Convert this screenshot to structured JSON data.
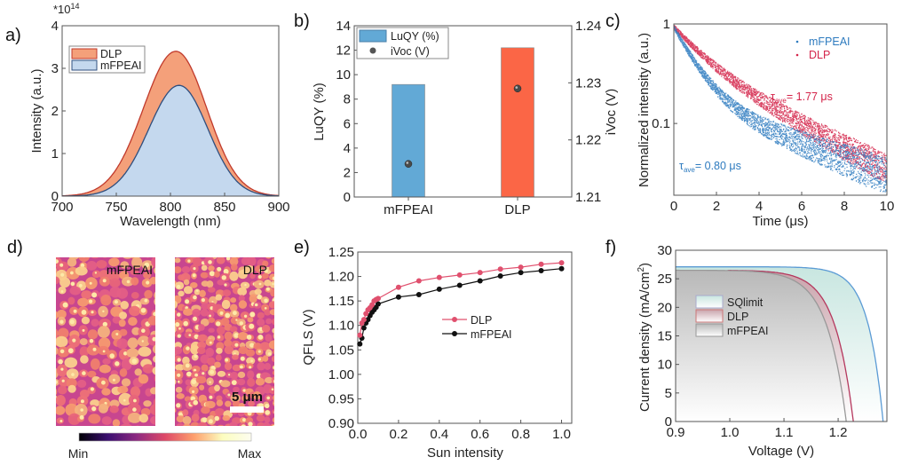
{
  "panels": {
    "a": {
      "label": "a)"
    },
    "b": {
      "label": "b)"
    },
    "c": {
      "label": "c)"
    },
    "d": {
      "label": "d)",
      "images": [
        "mFPEAI",
        "DLP"
      ],
      "scale_bar": "5 μm",
      "colorbar": {
        "min_label": "Min",
        "max_label": "Max",
        "colors": [
          "#000004",
          "#3b0f70",
          "#8c2981",
          "#de4968",
          "#fe9f6d",
          "#fcfdbf",
          "#fdfdf0"
        ]
      }
    },
    "e": {
      "label": "e)"
    },
    "f": {
      "label": "f)"
    }
  },
  "chart_data": [
    {
      "id": "a",
      "type": "area",
      "title": "",
      "xlabel": "Wavelength (nm)",
      "ylabel": "Intensity (a.u.)",
      "y_multiplier": "*10",
      "y_multiplier_exp": "14",
      "xlim": [
        700,
        900
      ],
      "ylim": [
        0,
        4
      ],
      "xticks": [
        700,
        750,
        800,
        850,
        900
      ],
      "yticks": [
        0,
        1,
        2,
        3,
        4
      ],
      "legend_position": "top-left",
      "series": [
        {
          "name": "DLP",
          "peak_x": 805,
          "peak_y": 3.4,
          "sigma": 30,
          "color": "#f4a07a",
          "line": "#c0392b"
        },
        {
          "name": "mFPEAI",
          "peak_x": 808,
          "peak_y": 2.6,
          "sigma": 28,
          "color": "#c4d8ee",
          "line": "#2f4f7f"
        }
      ]
    },
    {
      "id": "b",
      "type": "bar",
      "xlabel": "",
      "ylabel": "LuQY (%)",
      "y2label": "iVoc (V)",
      "categories": [
        "mFPEAI",
        "DLP"
      ],
      "ylim": [
        0,
        14
      ],
      "y2lim": [
        1.21,
        1.24
      ],
      "yticks": [
        0,
        2,
        4,
        6,
        8,
        10,
        12,
        14
      ],
      "y2ticks": [
        "1.21",
        "1.22",
        "1.23",
        "1.24"
      ],
      "legend_position": "top-left",
      "series": [
        {
          "name": "LuQY (%)",
          "axis": "left",
          "values": [
            9.2,
            12.2
          ],
          "colors": [
            "#62a9d6",
            "#fb6646"
          ]
        },
        {
          "name": "iVoc (V)",
          "axis": "right",
          "values": [
            1.2158,
            1.229
          ],
          "color": "#555555"
        }
      ]
    },
    {
      "id": "c",
      "type": "scatter",
      "xlabel": "Time (μs)",
      "ylabel": "Normalized intensity (a.u.)",
      "xlim": [
        0,
        10
      ],
      "ylim": [
        0.019,
        1
      ],
      "yscale": "log",
      "xticks": [
        0,
        2,
        4,
        6,
        8,
        10
      ],
      "yticks": [
        "1",
        "0.1"
      ],
      "legend_position": "top-right",
      "series": [
        {
          "name": "mFPEAI",
          "color": "#2e7bbf",
          "tau_ave_label": "τ",
          "tau_sub": "ave",
          "tau_value": "= 0.80 μs",
          "tau_ave_us": 0.8
        },
        {
          "name": "DLP",
          "color": "#d4244a",
          "tau_ave_label": "τ",
          "tau_sub": "ave",
          "tau_value": "= 1.77 μs",
          "tau_ave_us": 1.77
        }
      ]
    },
    {
      "id": "e",
      "type": "line",
      "xlabel": "Sun intensity",
      "ylabel": "QFLS (V)",
      "xlim": [
        0,
        1.05
      ],
      "ylim": [
        0.9,
        1.25
      ],
      "xticks": [
        "0.0",
        "0.2",
        "0.4",
        "0.6",
        "0.8",
        "1.0"
      ],
      "yticks": [
        "0.90",
        "0.95",
        "1.00",
        "1.05",
        "1.10",
        "1.15",
        "1.20",
        "1.25"
      ],
      "legend_position": "center",
      "x": [
        0.01,
        0.02,
        0.03,
        0.04,
        0.05,
        0.06,
        0.07,
        0.08,
        0.09,
        0.1,
        0.2,
        0.3,
        0.4,
        0.5,
        0.6,
        0.7,
        0.8,
        0.9,
        1.0
      ],
      "series": [
        {
          "name": "DLP",
          "color": "#e0506e",
          "values": [
            1.08,
            1.105,
            1.112,
            1.124,
            1.132,
            1.136,
            1.142,
            1.15,
            1.153,
            1.155,
            1.178,
            1.191,
            1.198,
            1.203,
            1.208,
            1.215,
            1.219,
            1.225,
            1.228
          ]
        },
        {
          "name": "mFPEAI",
          "color": "#111111",
          "values": [
            1.062,
            1.074,
            1.095,
            1.105,
            1.112,
            1.12,
            1.127,
            1.132,
            1.137,
            1.144,
            1.158,
            1.163,
            1.174,
            1.182,
            1.191,
            1.201,
            1.208,
            1.212,
            1.216
          ]
        }
      ]
    },
    {
      "id": "f",
      "type": "area",
      "xlabel": "Voltage (V)",
      "ylabel": "Current density (mA/cm",
      "ylabel_sup": "2",
      "ylabel_end": ")",
      "xlim": [
        0.9,
        1.29
      ],
      "ylim": [
        0,
        30
      ],
      "xticks": [
        "0.9",
        "1.0",
        "1.1",
        "1.2"
      ],
      "yticks": [
        "0",
        "5",
        "10",
        "15",
        "20",
        "25",
        "30"
      ],
      "legend_position": "top-left",
      "series": [
        {
          "name": "SQlimit",
          "jsc": 27.1,
          "voc": 1.283,
          "line": "#5b9bd5",
          "fill_top": "#c8e6e0"
        },
        {
          "name": "DLP",
          "jsc": 26.5,
          "voc": 1.228,
          "start_v": 0.995,
          "line": "#b5385e",
          "fill_top": "#c9a3ab"
        },
        {
          "name": "mFPEAI",
          "jsc": 26.5,
          "voc": 1.215,
          "line": "#999999",
          "fill_top": "#bdbdbd"
        }
      ]
    }
  ]
}
